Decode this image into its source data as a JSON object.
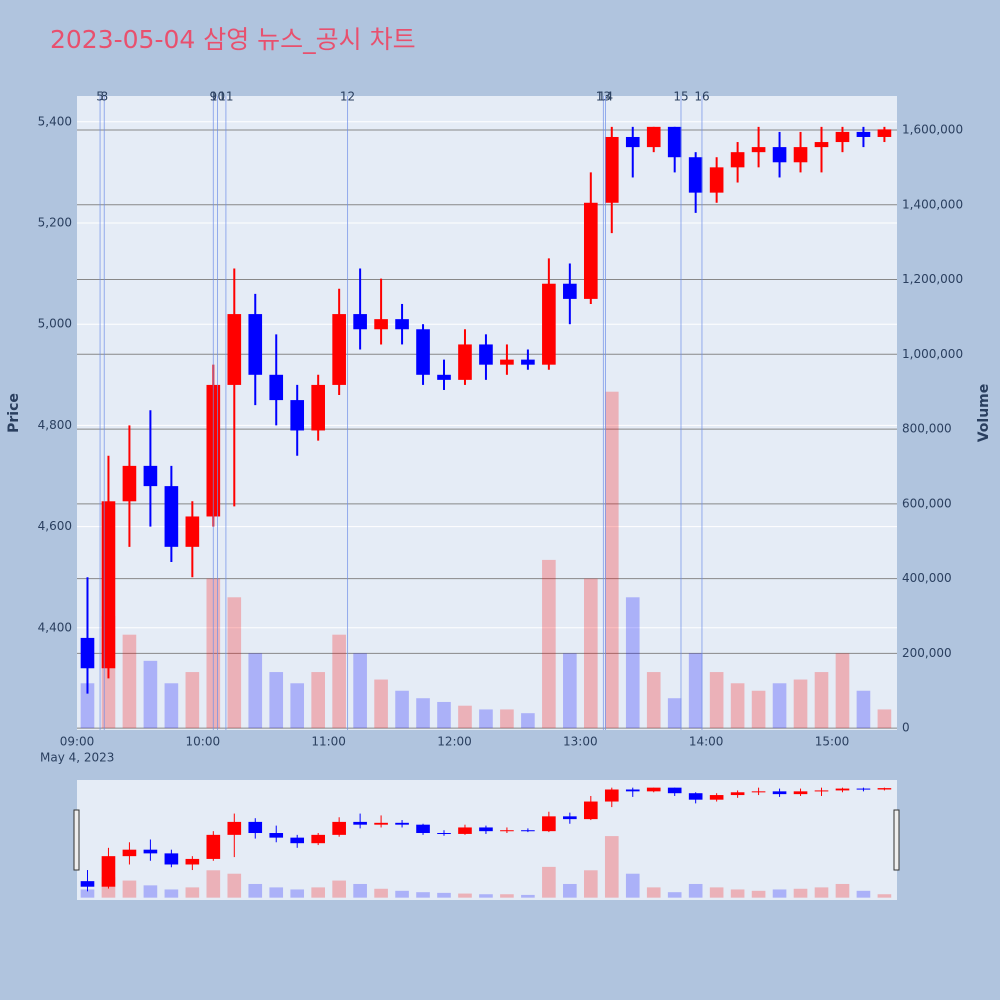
{
  "chart_data": {
    "type": "candlestick",
    "title": "2023-05-04 삼영 뉴스_공시 차트",
    "x": [
      "09:00",
      "09:10",
      "09:20",
      "09:30",
      "09:40",
      "09:50",
      "10:00",
      "10:10",
      "10:20",
      "10:30",
      "10:40",
      "10:50",
      "11:00",
      "11:10",
      "11:20",
      "11:30",
      "11:40",
      "11:50",
      "12:00",
      "12:10",
      "12:20",
      "12:30",
      "12:40",
      "12:50",
      "13:00",
      "13:10",
      "13:20",
      "13:30",
      "13:40",
      "13:50",
      "14:00",
      "14:10",
      "14:20",
      "14:30",
      "14:40",
      "14:50",
      "15:00",
      "15:10",
      "15:20"
    ],
    "open": [
      4380,
      4320,
      4650,
      4720,
      4680,
      4560,
      4620,
      4880,
      5020,
      4900,
      4850,
      4790,
      4880,
      5020,
      4990,
      5010,
      4990,
      4900,
      4890,
      4960,
      4920,
      4930,
      4920,
      5080,
      5050,
      5240,
      5370,
      5350,
      5390,
      5330,
      5260,
      5310,
      5340,
      5350,
      5320,
      5350,
      5360,
      5380,
      5370
    ],
    "high": [
      4500,
      4740,
      4800,
      4830,
      4720,
      4650,
      4920,
      5110,
      5060,
      4980,
      4880,
      4900,
      5070,
      5110,
      5090,
      5040,
      5000,
      4930,
      4990,
      4980,
      4960,
      4950,
      5130,
      5120,
      5300,
      5390,
      5390,
      5390,
      5390,
      5340,
      5330,
      5360,
      5390,
      5380,
      5380,
      5390,
      5390,
      5390,
      5390
    ],
    "low": [
      4270,
      4300,
      4560,
      4600,
      4530,
      4500,
      4600,
      4640,
      4840,
      4800,
      4740,
      4770,
      4860,
      4950,
      4960,
      4960,
      4880,
      4870,
      4880,
      4890,
      4900,
      4910,
      4910,
      5000,
      5040,
      5180,
      5290,
      5340,
      5300,
      5220,
      5240,
      5280,
      5310,
      5290,
      5300,
      5300,
      5340,
      5350,
      5360
    ],
    "close": [
      4320,
      4650,
      4720,
      4680,
      4560,
      4620,
      4880,
      5020,
      4900,
      4850,
      4790,
      4880,
      5020,
      4990,
      5010,
      4990,
      4900,
      4890,
      4960,
      4920,
      4930,
      4920,
      5080,
      5050,
      5240,
      5370,
      5350,
      5390,
      5330,
      5260,
      5310,
      5340,
      5350,
      5320,
      5350,
      5360,
      5380,
      5370,
      5385
    ],
    "volume": [
      120000,
      300000,
      250000,
      180000,
      120000,
      150000,
      400000,
      350000,
      200000,
      150000,
      120000,
      150000,
      250000,
      200000,
      130000,
      100000,
      80000,
      70000,
      60000,
      50000,
      50000,
      40000,
      450000,
      200000,
      400000,
      900000,
      350000,
      150000,
      80000,
      200000,
      150000,
      120000,
      100000,
      120000,
      130000,
      150000,
      200000,
      100000,
      50000
    ],
    "up_color": "#ff0000",
    "down_color": "#0000ff",
    "xlim": [
      "09:00",
      "15:31"
    ],
    "xticks": [
      "09:00",
      "10:00",
      "11:00",
      "12:00",
      "13:00",
      "14:00",
      "15:00"
    ],
    "x_date": "May 4, 2023",
    "ylim": [
      4198,
      5451
    ],
    "yticks": [
      {
        "value": 4400,
        "label": "4,400"
      },
      {
        "value": 4600,
        "label": "4,600"
      },
      {
        "value": 4800,
        "label": "4,800"
      },
      {
        "value": 5000,
        "label": "5,000"
      },
      {
        "value": 5200,
        "label": "5,200"
      },
      {
        "value": 5400,
        "label": "5,400"
      }
    ],
    "ylabel": "Price",
    "y2lim": [
      -5000,
      1691000
    ],
    "y2ticks": [
      0,
      {
        "value": 200000,
        "label": "200,000"
      },
      {
        "value": 400000,
        "label": "400,000"
      },
      {
        "value": 600000,
        "label": "600,000"
      },
      {
        "value": 800000,
        "label": "800,000"
      },
      {
        "value": 1000000,
        "label": "1,000,000"
      },
      {
        "value": 1200000,
        "label": "1,200,000"
      },
      {
        "value": 1400000,
        "label": "1,400,000"
      },
      {
        "value": 1600000,
        "label": "1,600,000"
      }
    ],
    "y2label": "Volume",
    "news": {
      "x": [
        "09:11",
        "09:13",
        "10:05",
        "10:07",
        "10:11",
        "11:09",
        "13:11",
        "13:12",
        "13:48",
        "13:58"
      ],
      "labels": [
        5,
        8,
        9,
        10,
        11,
        12,
        13,
        14,
        15,
        16
      ]
    }
  }
}
